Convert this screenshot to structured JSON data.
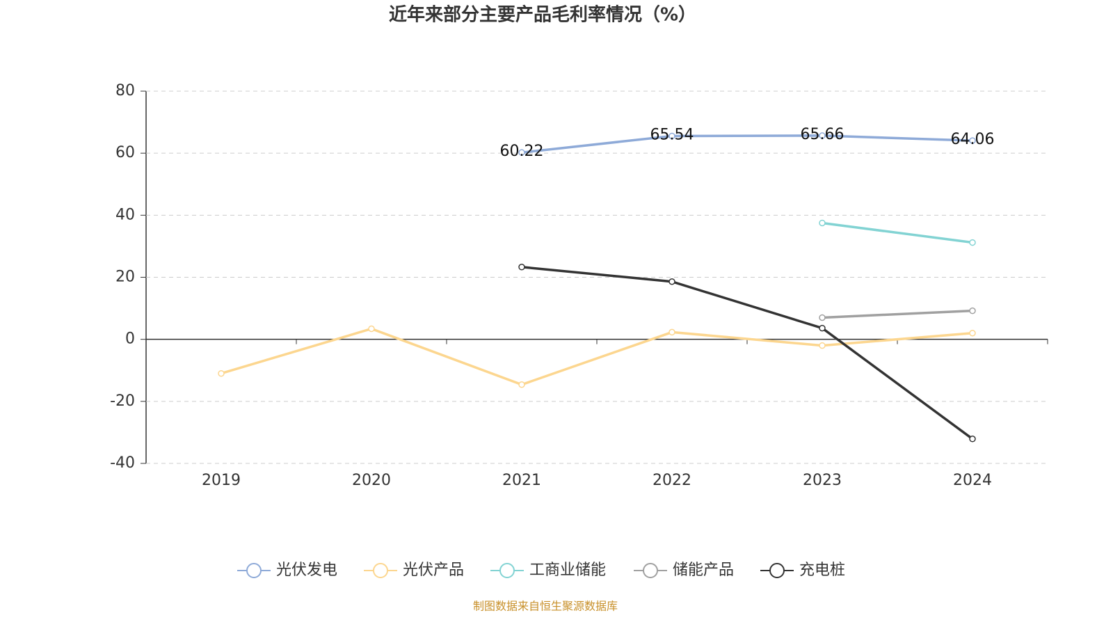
{
  "chart_data": {
    "type": "line",
    "title": "近年来部分主要产品毛利率情况（%）",
    "categories": [
      "2019",
      "2020",
      "2021",
      "2022",
      "2023",
      "2024"
    ],
    "series": [
      {
        "name": "光伏发电",
        "color": "#8eaad8",
        "labels": true,
        "values": [
          null,
          null,
          60.22,
          65.54,
          65.66,
          64.06
        ]
      },
      {
        "name": "光伏产品",
        "color": "#fcd68f",
        "values": [
          -11.0,
          3.4,
          -14.6,
          2.3,
          -2.0,
          2.0
        ]
      },
      {
        "name": "工商业储能",
        "color": "#82d3d3",
        "values": [
          null,
          null,
          null,
          null,
          37.5,
          31.2
        ]
      },
      {
        "name": "储能产品",
        "color": "#a0a0a0",
        "values": [
          null,
          null,
          null,
          null,
          7.0,
          9.2
        ]
      },
      {
        "name": "充电桩",
        "color": "#333333",
        "values": [
          null,
          null,
          23.3,
          18.6,
          3.6,
          -32.1
        ]
      }
    ],
    "ylim": [
      -40,
      80
    ],
    "yticks": [
      -40,
      -20,
      0,
      20,
      40,
      60,
      80
    ],
    "grid": true,
    "legend": "bottom",
    "source": "制图数据来自恒生聚源数据库"
  }
}
